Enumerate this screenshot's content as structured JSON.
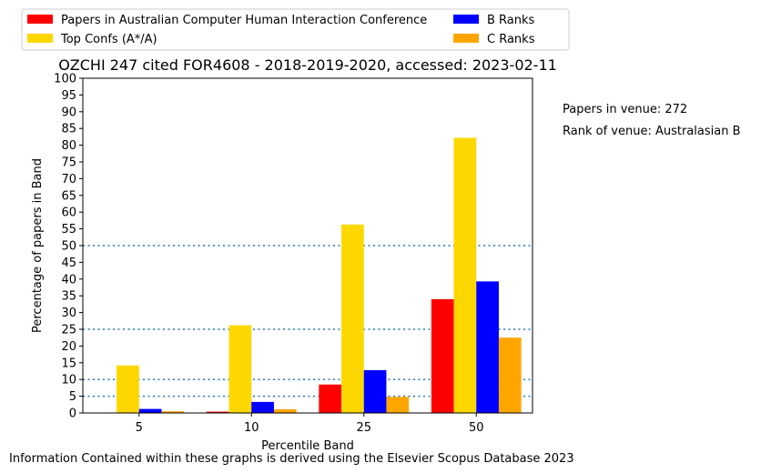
{
  "chart_data": {
    "type": "bar",
    "title": "OZCHI 247 cited FOR4608 - 2018-2019-2020, accessed: 2023-02-11",
    "xlabel": "Percentile Band",
    "ylabel": "Percentage of papers in Band",
    "categories": [
      "5",
      "10",
      "25",
      "50"
    ],
    "ylim": [
      0,
      100
    ],
    "yticks": [
      "0",
      "5",
      "10",
      "15",
      "20",
      "25",
      "30",
      "35",
      "40",
      "45",
      "50",
      "55",
      "60",
      "65",
      "70",
      "75",
      "80",
      "85",
      "90",
      "95",
      "100"
    ],
    "reference_lines": [
      5,
      10,
      25,
      50
    ],
    "legend_placement": "top-left, above plot",
    "series": [
      {
        "name": "Papers in Australian Computer Human Interaction Conference",
        "color": "#ff0000",
        "values": [
          0,
          0.4,
          8.5,
          34
        ]
      },
      {
        "name": "Top Confs (A*/A)",
        "color": "#ffd700",
        "values": [
          14.2,
          26.2,
          56.3,
          82.2
        ]
      },
      {
        "name": "B Ranks",
        "color": "#0000ff",
        "values": [
          1.2,
          3.3,
          12.8,
          39.3
        ]
      },
      {
        "name": "C Ranks",
        "color": "#ffa500",
        "values": [
          0.5,
          1.1,
          4.8,
          22.5
        ]
      }
    ]
  },
  "annotations": {
    "papers_in_venue": "Papers in venue: 272",
    "rank_of_venue": "Rank of venue: Australasian B"
  },
  "footer": "Information Contained within these graphs is derived using the Elsevier Scopus Database 2023",
  "colors": {
    "refline": "#1f77b4"
  }
}
